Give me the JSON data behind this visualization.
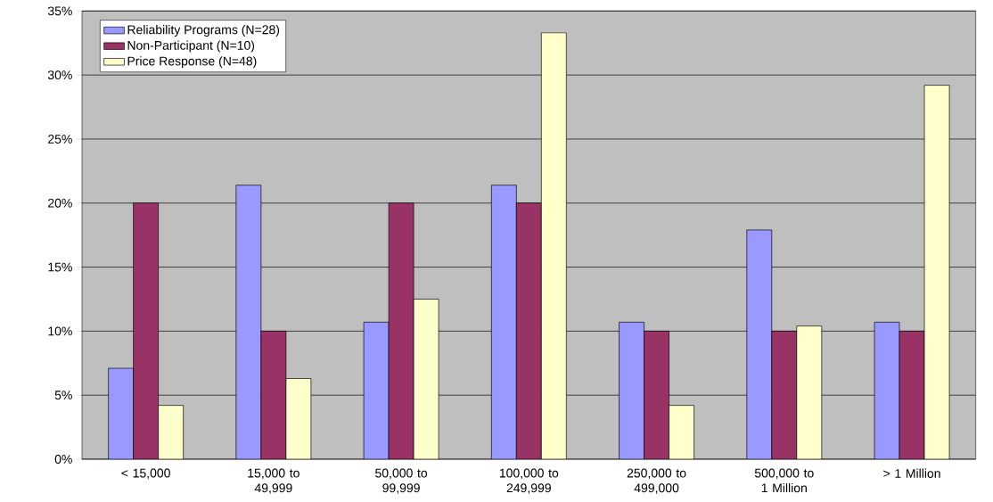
{
  "chart_data": {
    "type": "bar",
    "categories": [
      "< 15,000",
      "15,000 to 49,999",
      "50,000 to 99,999",
      "100,000 to 249,999",
      "250,000 to 499,000",
      "500,000 to 1 Million",
      "> 1 Million"
    ],
    "series": [
      {
        "name": "Reliability Programs (N=28)",
        "color": "#9999ff",
        "values": [
          7.1,
          21.4,
          10.7,
          21.4,
          10.7,
          17.9,
          10.7
        ]
      },
      {
        "name": "Non-Participant (N=10)",
        "color": "#993366",
        "values": [
          20,
          10,
          20,
          20,
          10,
          10,
          10
        ]
      },
      {
        "name": "Price Response (N=48)",
        "color": "#ffffcc",
        "values": [
          4.2,
          6.3,
          12.5,
          33.3,
          4.2,
          10.4,
          29.2
        ]
      }
    ],
    "ylim": [
      0,
      35
    ],
    "yticks": [
      {
        "value": 0,
        "label": "0%"
      },
      {
        "value": 5,
        "label": "5%"
      },
      {
        "value": 10,
        "label": "10%"
      },
      {
        "value": 15,
        "label": "15%"
      },
      {
        "value": 20,
        "label": "20%"
      },
      {
        "value": 25,
        "label": "25%"
      },
      {
        "value": 30,
        "label": "30%"
      },
      {
        "value": 35,
        "label": "35%"
      }
    ],
    "grid": "y",
    "legend": "top left"
  }
}
